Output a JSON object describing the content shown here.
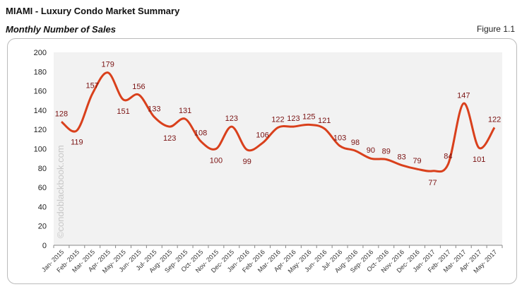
{
  "header": {
    "title": "MIAMI - Luxury Condo Market Summary",
    "subtitle": "Monthly Number of Sales",
    "figure": "Figure 1.1"
  },
  "watermark": "©condoblackbook.com",
  "chart_data": {
    "type": "line",
    "title": "Monthly Number of Sales",
    "categories": [
      "Jan- 2015",
      "Feb- 2015",
      "Mar- 2015",
      "Apr- 2015",
      "May- 2015",
      "Jun- 2015",
      "Jul- 2015",
      "Aug- 2015",
      "Sep- 2015",
      "Oct- 2015",
      "Nov- 2015",
      "Dec- 2015",
      "Jan- 2016",
      "Feb- 2016",
      "Mar- 2016",
      "Apr- 2016",
      "May- 2016",
      "Jun- 2016",
      "Jul- 2016",
      "Aug- 2016",
      "Sep- 2016",
      "Oct- 2016",
      "Nov- 2016",
      "Dec- 2016",
      "Jan- 2017",
      "Feb- 2017",
      "Mar- 2017",
      "Apr- 2017",
      "May- 2017"
    ],
    "values": [
      128,
      119,
      157,
      179,
      151,
      156,
      133,
      123,
      131,
      108,
      100,
      123,
      99,
      106,
      122,
      123,
      125,
      121,
      103,
      98,
      90,
      89,
      83,
      79,
      77,
      84,
      147,
      101,
      122
    ],
    "ylim": [
      0,
      200
    ],
    "yticks": [
      0,
      20,
      40,
      60,
      80,
      100,
      120,
      140,
      160,
      180,
      200
    ],
    "grid": false,
    "smooth": true,
    "colors": {
      "line": "#d9401c",
      "label": "#7a1212",
      "plot_bg": "#f2f2f2"
    }
  }
}
